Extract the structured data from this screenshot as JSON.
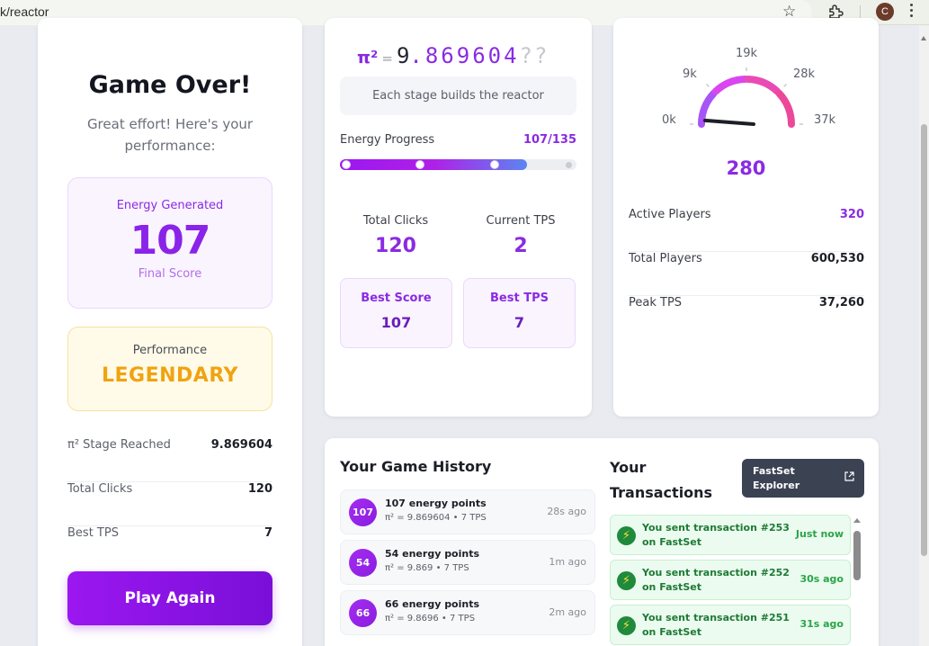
{
  "browser": {
    "url": "k/reactor",
    "avatar_initial": "C"
  },
  "left": {
    "title": "Game Over!",
    "subtitle": "Great effort! Here's your performance:",
    "energy": {
      "label": "Energy Generated",
      "value": "107",
      "caption": "Final Score"
    },
    "performance": {
      "label": "Performance",
      "value": "LEGENDARY"
    },
    "stats": [
      {
        "label": "π² Stage Reached",
        "value": "9.869604"
      },
      {
        "label": "Total Clicks",
        "value": "120"
      },
      {
        "label": "Best TPS",
        "value": "7"
      }
    ],
    "play_again": "Play Again"
  },
  "middle": {
    "pi_symbol": "π²",
    "pi_eq": "=",
    "pi_int": "9",
    "pi_digits": ".869604",
    "pi_unknown": "??",
    "stage_note": "Each stage builds the reactor",
    "progress_label": "Energy Progress",
    "progress_value": "107/135",
    "progress_fraction": 0.7926,
    "total_clicks": {
      "label": "Total Clicks",
      "value": "120"
    },
    "current_tps": {
      "label": "Current TPS",
      "value": "2"
    },
    "best_score": {
      "label": "Best Score",
      "value": "107"
    },
    "best_tps": {
      "label": "Best TPS",
      "value": "7"
    }
  },
  "right": {
    "gauge": {
      "min_label": "0k",
      "labels": [
        "0k",
        "9k",
        "19k",
        "28k",
        "37k"
      ],
      "value": "280",
      "value_fraction": 0.0076,
      "colors": [
        "#8b5cf6",
        "#a855f7",
        "#d946ef",
        "#e94bb5",
        "#ec4899"
      ]
    },
    "rows": [
      {
        "label": "Active Players",
        "value": "320"
      },
      {
        "label": "Total Players",
        "value": "600,530"
      },
      {
        "label": "Peak TPS",
        "value": "37,260"
      }
    ]
  },
  "history": {
    "title": "Your Game History",
    "items": [
      {
        "badge": "107",
        "title": "107 energy points",
        "detail": "π² = 9.869604 • 7 TPS",
        "ago": "28s ago"
      },
      {
        "badge": "54",
        "title": "54 energy points",
        "detail": "π² = 9.869 • 7 TPS",
        "ago": "1m ago"
      },
      {
        "badge": "66",
        "title": "66 energy points",
        "detail": "π² = 9.8696 • 7 TPS",
        "ago": "2m ago"
      }
    ]
  },
  "transactions": {
    "title": "Your Transactions",
    "explorer_button": "FastSet Explorer",
    "items": [
      {
        "message": "You sent transaction #253 on FastSet",
        "ago": "Just now"
      },
      {
        "message": "You sent transaction #252 on FastSet",
        "ago": "30s ago"
      },
      {
        "message": "You sent transaction #251 on FastSet",
        "ago": "31s ago"
      }
    ]
  }
}
